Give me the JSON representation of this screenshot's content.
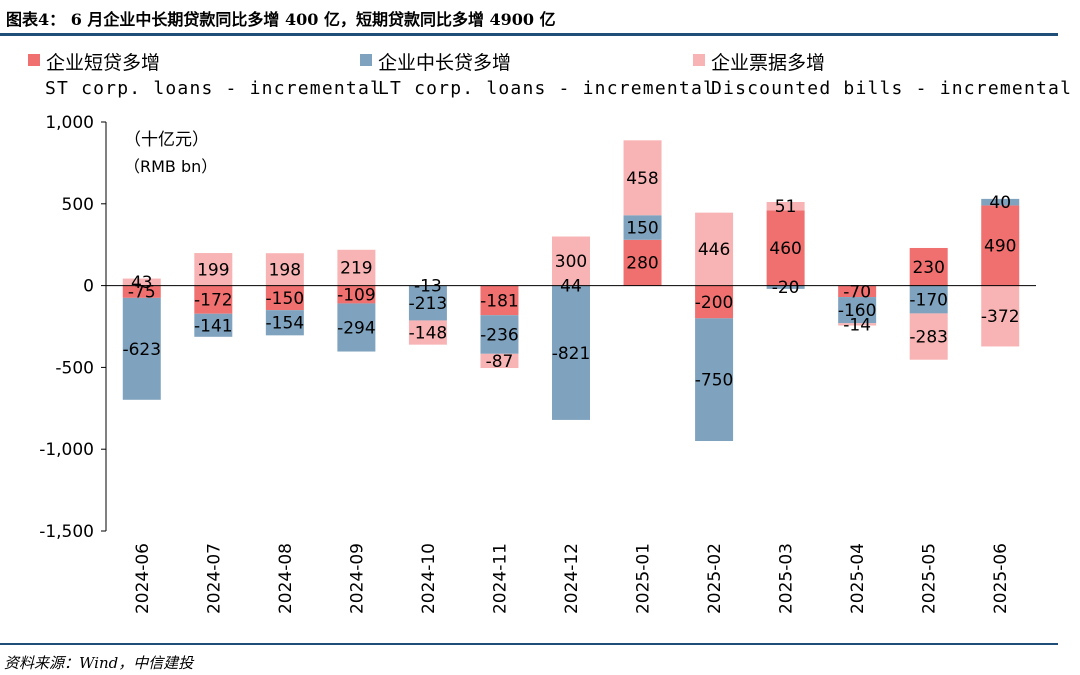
{
  "header": {
    "title": "图表4： 6 月企业中长期贷款同比多增 400 亿，短期贷款同比多增 4900 亿"
  },
  "footer": {
    "source": "资料来源：Wind，中信建投"
  },
  "legend": [
    {
      "cn": "企业短贷多增",
      "en": "ST corp. loans - incremental",
      "color": "#f07070"
    },
    {
      "cn": "企业中长贷多增",
      "en": "LT corp. loans - incremental",
      "color": "#7fa3be"
    },
    {
      "cn": "企业票据多增",
      "en": "Discounted bills - incremental",
      "color": "#f8b4b4"
    }
  ],
  "chart_data": {
    "type": "bar",
    "stacked": true,
    "unit_cn": "（十亿元）",
    "unit_en": "（RMB bn）",
    "ylim": [
      -1500,
      1000
    ],
    "yticks": [
      -1500,
      -1000,
      -500,
      0,
      500,
      1000
    ],
    "ytick_labels": [
      "-1,500",
      "-1,000",
      "-500",
      "0",
      "500",
      "1,000"
    ],
    "categories": [
      "2024-06",
      "2024-07",
      "2024-08",
      "2024-09",
      "2024-10",
      "2024-11",
      "2024-12",
      "2025-01",
      "2025-02",
      "2025-03",
      "2025-04",
      "2025-05",
      "2025-06"
    ],
    "series": [
      {
        "name": "企业短贷多增",
        "color": "#f07070",
        "values": [
          -75,
          -172,
          -150,
          -109,
          null,
          -181,
          null,
          280,
          -200,
          460,
          -70,
          230,
          490
        ]
      },
      {
        "name": "企业中长贷多增",
        "color": "#7fa3be",
        "values": [
          -623,
          -141,
          -154,
          -294,
          -213,
          -236,
          -821,
          150,
          -750,
          -20,
          -160,
          -170,
          40
        ]
      },
      {
        "name": "企业票据多增",
        "color": "#f8b4b4",
        "values": [
          43,
          199,
          198,
          219,
          -148,
          -87,
          300,
          458,
          446,
          51,
          -14,
          -283,
          -372
        ]
      }
    ],
    "bill_extra_note": "2024-10 data label -13; 2024-12 data label 44",
    "labels_extra": [
      {
        "category": "2024-10",
        "text": "-13"
      },
      {
        "category": "2024-12",
        "text": "44"
      }
    ]
  }
}
